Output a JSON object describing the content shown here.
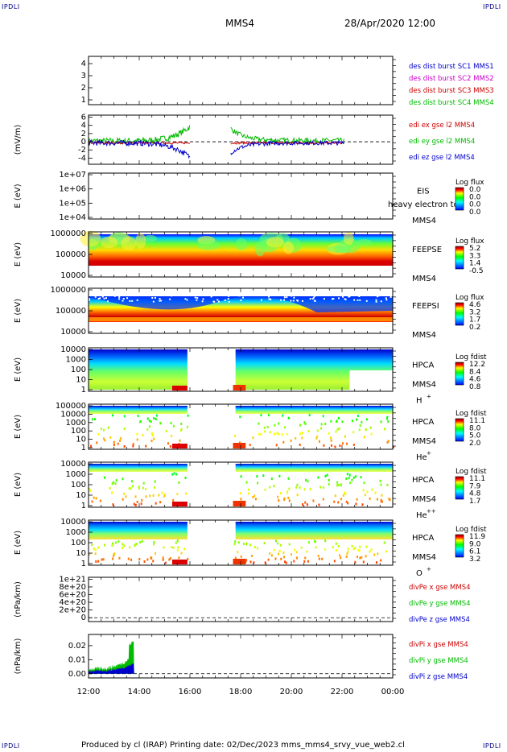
{
  "corner_label": "IPDLI",
  "header": {
    "spacecraft": "MMS4",
    "datetime": "28/Apr/2020 12:00"
  },
  "footer": "Produced by cl (IRAP)   Printing date: 02/Dec/2023   mms_mms4_srvy_vue_web2.cl",
  "colors": {
    "mms1": "#0000cc",
    "mms2": "#cc00cc",
    "mms3": "#cc0000",
    "mms4": "#00bb00",
    "x": "#cc0000",
    "y": "#00bb00",
    "z": "#0000cc"
  },
  "chart_data": {
    "type": "multi-panel time series",
    "time_axis": {
      "ticks": [
        "12:00",
        "14:00",
        "16:00",
        "18:00",
        "20:00",
        "22:00",
        "00:00"
      ],
      "range": [
        "12:00",
        "00:00"
      ]
    },
    "panels": [
      {
        "id": "des_dist",
        "ylabel": "",
        "ylim": [
          0.6,
          4.6
        ],
        "yticks": [
          "4",
          "3",
          "2",
          "1"
        ],
        "legend": [
          "des dist burst SC1 MMS1",
          "des dist burst SC2 MMS2",
          "des dist burst SC3 MMS3",
          "des dist burst SC4 MMS4"
        ]
      },
      {
        "id": "edi",
        "ylabel": "(mV/m)",
        "ylim": [
          -5.5,
          6.5
        ],
        "yticks": [
          "6",
          "4",
          "2",
          "0",
          "-2",
          "-4"
        ],
        "legend": [
          "edi ex gse l2 MMS4",
          "edi ey gse l2 MMS4",
          "edi ez gse l2 MMS4"
        ]
      },
      {
        "id": "eis",
        "ylabel": "E (eV)",
        "yticks": [
          "1e+07",
          "1e+06",
          "1e+05",
          "1e+04"
        ],
        "name": "EIS",
        "subtitle": "heavy electron to",
        "sc": "MMS4",
        "colorbar": {
          "label": "Log flux",
          "ticks": [
            "0.0",
            "0.0",
            "0.0",
            "0.0"
          ]
        }
      },
      {
        "id": "feepse",
        "ylabel": "E (eV)",
        "yticks": [
          "1000000",
          "100000",
          "10000"
        ],
        "name": "FEEPSE",
        "sc": "MMS4",
        "colorbar": {
          "label": "Log flux",
          "ticks": [
            "5.2",
            "3.3",
            "1.4",
            "-0.5"
          ]
        }
      },
      {
        "id": "feepsi",
        "ylabel": "E (eV)",
        "yticks": [
          "1000000",
          "100000",
          "10000"
        ],
        "name": "FEEPSI",
        "sc": "MMS4",
        "colorbar": {
          "label": "Log flux",
          "ticks": [
            "4.6",
            "3.2",
            "1.7",
            "0.2"
          ]
        }
      },
      {
        "id": "hpca_h",
        "ylabel": "E (eV)",
        "yticks": [
          "10000",
          "1000",
          "100",
          "10",
          "1"
        ],
        "name": "HPCA",
        "sc": "MMS4",
        "species": "H",
        "charge": "+",
        "colorbar": {
          "label": "Log fdist",
          "ticks": [
            "12.2",
            "8.4",
            "4.6",
            "0.8"
          ]
        }
      },
      {
        "id": "hpca_he",
        "ylabel": "E (eV)",
        "yticks": [
          "100000",
          "10000",
          "1000",
          "100",
          "10",
          "1"
        ],
        "name": "HPCA",
        "sc": "MMS4",
        "species": "He",
        "charge": "+",
        "colorbar": {
          "label": "Log fdist",
          "ticks": [
            "11.1",
            "8.0",
            "5.0",
            "2.0"
          ]
        }
      },
      {
        "id": "hpca_hepp",
        "ylabel": "E (eV)",
        "yticks": [
          "10000",
          "1000",
          "100",
          "10",
          "1"
        ],
        "name": "HPCA",
        "sc": "MMS4",
        "species": "He",
        "charge": "++",
        "colorbar": {
          "label": "Log fdist",
          "ticks": [
            "11.1",
            "7.9",
            "4.8",
            "1.7"
          ]
        }
      },
      {
        "id": "hpca_o",
        "ylabel": "E (eV)",
        "yticks": [
          "10000",
          "1000",
          "100",
          "10",
          "1"
        ],
        "name": "HPCA",
        "sc": "MMS4",
        "species": "O",
        "charge": "+",
        "colorbar": {
          "label": "Log fdist",
          "ticks": [
            "11.9",
            "9.0",
            "6.1",
            "3.2"
          ]
        }
      },
      {
        "id": "divpe",
        "ylabel": "(nPa/km)",
        "ylim": [
          -1e+20,
          1.05e+21
        ],
        "yticks": [
          "1e+21",
          "8e+20",
          "6e+20",
          "4e+20",
          "2e+20",
          "0"
        ],
        "legend": [
          "divPe x gse MMS4",
          "divPe y gse MMS4",
          "divPe z gse MMS4"
        ]
      },
      {
        "id": "divpi",
        "ylabel": "(nPa/km)",
        "ylim": [
          -0.003,
          0.028
        ],
        "yticks": [
          "0.02",
          "0.01",
          "0.00"
        ],
        "legend": [
          "divPi x gse MMS4",
          "divPi y gse MMS4",
          "divPi z gse MMS4"
        ]
      }
    ]
  }
}
